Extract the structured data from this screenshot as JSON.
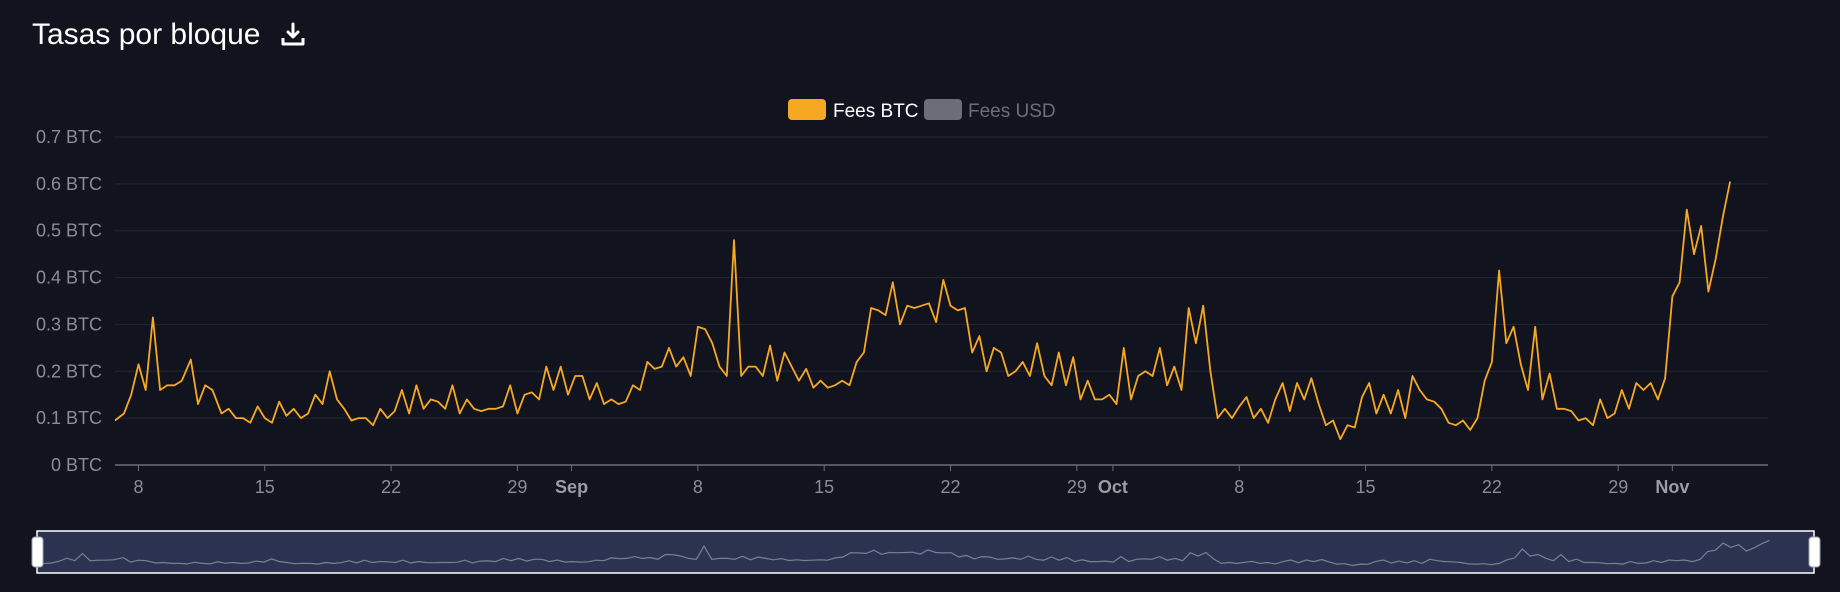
{
  "header": {
    "title": "Tasas por bloque",
    "download_icon": "download-icon"
  },
  "colors": {
    "background": "#11131e",
    "series_btc": "#f7a823",
    "series_usd_inactive": "#6b6e78",
    "grid": "#242633",
    "navigator_fill": "#2b3350",
    "navigator_border": "#ffffff"
  },
  "chart_data": {
    "type": "line",
    "legend_position": "top-center",
    "grid": true,
    "y_ticks": [
      "0 BTC",
      "0.1 BTC",
      "0.2 BTC",
      "0.3 BTC",
      "0.4 BTC",
      "0.5 BTC",
      "0.6 BTC",
      "0.7 BTC"
    ],
    "ylim": [
      0,
      0.7
    ],
    "x_ticks": [
      {
        "label": "8",
        "day": 8,
        "bold": false
      },
      {
        "label": "15",
        "day": 15,
        "bold": false
      },
      {
        "label": "22",
        "day": 22,
        "bold": false
      },
      {
        "label": "29",
        "day": 29,
        "bold": false
      },
      {
        "label": "Sep",
        "day": 32,
        "bold": true
      },
      {
        "label": "8",
        "day": 39,
        "bold": false
      },
      {
        "label": "15",
        "day": 46,
        "bold": false
      },
      {
        "label": "22",
        "day": 53,
        "bold": false
      },
      {
        "label": "29",
        "day": 60,
        "bold": false
      },
      {
        "label": "Oct",
        "day": 62,
        "bold": true
      },
      {
        "label": "8",
        "day": 69,
        "bold": false
      },
      {
        "label": "15",
        "day": 76,
        "bold": false
      },
      {
        "label": "22",
        "day": 83,
        "bold": false
      },
      {
        "label": "29",
        "day": 90,
        "bold": false
      },
      {
        "label": "Nov",
        "day": 93,
        "bold": true
      }
    ],
    "xlim": [
      6.7,
      98.3
    ],
    "series": [
      {
        "name": "Fees BTC",
        "active": true,
        "points": [
          [
            6.7,
            0.095
          ],
          [
            7.2,
            0.11
          ],
          [
            7.6,
            0.15
          ],
          [
            8.0,
            0.215
          ],
          [
            8.4,
            0.16
          ],
          [
            8.8,
            0.315
          ],
          [
            9.2,
            0.16
          ],
          [
            9.6,
            0.17
          ],
          [
            10.0,
            0.17
          ],
          [
            10.4,
            0.18
          ],
          [
            10.9,
            0.225
          ],
          [
            11.3,
            0.13
          ],
          [
            11.7,
            0.17
          ],
          [
            12.1,
            0.16
          ],
          [
            12.6,
            0.11
          ],
          [
            13.0,
            0.12
          ],
          [
            13.4,
            0.1
          ],
          [
            13.8,
            0.1
          ],
          [
            14.2,
            0.09
          ],
          [
            14.6,
            0.125
          ],
          [
            15.0,
            0.1
          ],
          [
            15.4,
            0.09
          ],
          [
            15.8,
            0.135
          ],
          [
            16.2,
            0.105
          ],
          [
            16.6,
            0.12
          ],
          [
            17.0,
            0.1
          ],
          [
            17.4,
            0.11
          ],
          [
            17.8,
            0.15
          ],
          [
            18.2,
            0.13
          ],
          [
            18.6,
            0.2
          ],
          [
            19.0,
            0.14
          ],
          [
            19.4,
            0.12
          ],
          [
            19.8,
            0.095
          ],
          [
            20.2,
            0.1
          ],
          [
            20.6,
            0.1
          ],
          [
            21.0,
            0.085
          ],
          [
            21.4,
            0.12
          ],
          [
            21.8,
            0.1
          ],
          [
            22.2,
            0.115
          ],
          [
            22.6,
            0.16
          ],
          [
            23.0,
            0.11
          ],
          [
            23.4,
            0.17
          ],
          [
            23.8,
            0.12
          ],
          [
            24.2,
            0.14
          ],
          [
            24.6,
            0.135
          ],
          [
            25.0,
            0.12
          ],
          [
            25.4,
            0.17
          ],
          [
            25.8,
            0.11
          ],
          [
            26.2,
            0.14
          ],
          [
            26.6,
            0.12
          ],
          [
            27.0,
            0.115
          ],
          [
            27.4,
            0.12
          ],
          [
            27.8,
            0.12
          ],
          [
            28.2,
            0.125
          ],
          [
            28.6,
            0.17
          ],
          [
            29.0,
            0.11
          ],
          [
            29.4,
            0.15
          ],
          [
            29.8,
            0.155
          ],
          [
            30.2,
            0.14
          ],
          [
            30.6,
            0.21
          ],
          [
            31.0,
            0.16
          ],
          [
            31.4,
            0.21
          ],
          [
            31.8,
            0.15
          ],
          [
            32.2,
            0.19
          ],
          [
            32.6,
            0.19
          ],
          [
            33.0,
            0.14
          ],
          [
            33.4,
            0.175
          ],
          [
            33.8,
            0.13
          ],
          [
            34.2,
            0.14
          ],
          [
            34.6,
            0.13
          ],
          [
            35.0,
            0.135
          ],
          [
            35.4,
            0.17
          ],
          [
            35.8,
            0.16
          ],
          [
            36.2,
            0.22
          ],
          [
            36.6,
            0.205
          ],
          [
            37.0,
            0.21
          ],
          [
            37.4,
            0.25
          ],
          [
            37.8,
            0.21
          ],
          [
            38.2,
            0.23
          ],
          [
            38.6,
            0.19
          ],
          [
            39.0,
            0.295
          ],
          [
            39.4,
            0.29
          ],
          [
            39.8,
            0.26
          ],
          [
            40.2,
            0.21
          ],
          [
            40.6,
            0.19
          ],
          [
            41.0,
            0.48
          ],
          [
            41.4,
            0.19
          ],
          [
            41.8,
            0.21
          ],
          [
            42.2,
            0.21
          ],
          [
            42.6,
            0.19
          ],
          [
            43.0,
            0.255
          ],
          [
            43.4,
            0.18
          ],
          [
            43.8,
            0.24
          ],
          [
            44.2,
            0.21
          ],
          [
            44.6,
            0.18
          ],
          [
            45.0,
            0.205
          ],
          [
            45.4,
            0.165
          ],
          [
            45.8,
            0.18
          ],
          [
            46.2,
            0.165
          ],
          [
            46.6,
            0.17
          ],
          [
            47.0,
            0.18
          ],
          [
            47.4,
            0.17
          ],
          [
            47.8,
            0.22
          ],
          [
            48.2,
            0.24
          ],
          [
            48.6,
            0.335
          ],
          [
            49.0,
            0.33
          ],
          [
            49.4,
            0.32
          ],
          [
            49.8,
            0.39
          ],
          [
            50.2,
            0.3
          ],
          [
            50.6,
            0.34
          ],
          [
            51.0,
            0.335
          ],
          [
            51.4,
            0.34
          ],
          [
            51.8,
            0.345
          ],
          [
            52.2,
            0.305
          ],
          [
            52.6,
            0.395
          ],
          [
            53.0,
            0.34
          ],
          [
            53.4,
            0.33
          ],
          [
            53.8,
            0.335
          ],
          [
            54.2,
            0.24
          ],
          [
            54.6,
            0.275
          ],
          [
            55.0,
            0.2
          ],
          [
            55.4,
            0.25
          ],
          [
            55.8,
            0.24
          ],
          [
            56.2,
            0.19
          ],
          [
            56.6,
            0.2
          ],
          [
            57.0,
            0.22
          ],
          [
            57.4,
            0.19
          ],
          [
            57.8,
            0.26
          ],
          [
            58.2,
            0.19
          ],
          [
            58.6,
            0.17
          ],
          [
            59.0,
            0.24
          ],
          [
            59.4,
            0.17
          ],
          [
            59.8,
            0.23
          ],
          [
            60.2,
            0.14
          ],
          [
            60.6,
            0.18
          ],
          [
            61.0,
            0.14
          ],
          [
            61.4,
            0.14
          ],
          [
            61.8,
            0.15
          ],
          [
            62.2,
            0.13
          ],
          [
            62.6,
            0.25
          ],
          [
            63.0,
            0.14
          ],
          [
            63.4,
            0.19
          ],
          [
            63.8,
            0.2
          ],
          [
            64.2,
            0.19
          ],
          [
            64.6,
            0.25
          ],
          [
            65.0,
            0.17
          ],
          [
            65.4,
            0.21
          ],
          [
            65.8,
            0.16
          ],
          [
            66.2,
            0.335
          ],
          [
            66.6,
            0.26
          ],
          [
            67.0,
            0.34
          ],
          [
            67.4,
            0.2
          ],
          [
            67.8,
            0.1
          ],
          [
            68.2,
            0.12
          ],
          [
            68.6,
            0.1
          ],
          [
            69.0,
            0.125
          ],
          [
            69.4,
            0.145
          ],
          [
            69.8,
            0.1
          ],
          [
            70.2,
            0.12
          ],
          [
            70.6,
            0.09
          ],
          [
            71.0,
            0.14
          ],
          [
            71.4,
            0.175
          ],
          [
            71.8,
            0.115
          ],
          [
            72.2,
            0.175
          ],
          [
            72.6,
            0.14
          ],
          [
            73.0,
            0.185
          ],
          [
            73.4,
            0.13
          ],
          [
            73.8,
            0.085
          ],
          [
            74.2,
            0.095
          ],
          [
            74.6,
            0.055
          ],
          [
            75.0,
            0.085
          ],
          [
            75.4,
            0.08
          ],
          [
            75.8,
            0.145
          ],
          [
            76.2,
            0.175
          ],
          [
            76.6,
            0.11
          ],
          [
            77.0,
            0.15
          ],
          [
            77.4,
            0.11
          ],
          [
            77.8,
            0.16
          ],
          [
            78.2,
            0.1
          ],
          [
            78.6,
            0.19
          ],
          [
            79.0,
            0.16
          ],
          [
            79.4,
            0.14
          ],
          [
            79.8,
            0.135
          ],
          [
            80.2,
            0.12
          ],
          [
            80.6,
            0.09
          ],
          [
            81.0,
            0.085
          ],
          [
            81.4,
            0.095
          ],
          [
            81.8,
            0.075
          ],
          [
            82.2,
            0.1
          ],
          [
            82.6,
            0.18
          ],
          [
            83.0,
            0.22
          ],
          [
            83.4,
            0.415
          ],
          [
            83.8,
            0.26
          ],
          [
            84.2,
            0.295
          ],
          [
            84.6,
            0.215
          ],
          [
            85.0,
            0.16
          ],
          [
            85.4,
            0.295
          ],
          [
            85.8,
            0.14
          ],
          [
            86.2,
            0.195
          ],
          [
            86.6,
            0.12
          ],
          [
            87.0,
            0.12
          ],
          [
            87.4,
            0.115
          ],
          [
            87.8,
            0.095
          ],
          [
            88.2,
            0.1
          ],
          [
            88.6,
            0.085
          ],
          [
            89.0,
            0.14
          ],
          [
            89.4,
            0.1
          ],
          [
            89.8,
            0.11
          ],
          [
            90.2,
            0.16
          ],
          [
            90.6,
            0.12
          ],
          [
            91.0,
            0.175
          ],
          [
            91.4,
            0.16
          ],
          [
            91.8,
            0.175
          ],
          [
            92.2,
            0.14
          ],
          [
            92.6,
            0.185
          ],
          [
            93.0,
            0.36
          ],
          [
            93.4,
            0.39
          ],
          [
            93.8,
            0.545
          ],
          [
            94.2,
            0.45
          ],
          [
            94.6,
            0.51
          ],
          [
            95.0,
            0.37
          ],
          [
            95.4,
            0.44
          ],
          [
            95.8,
            0.53
          ],
          [
            96.2,
            0.605
          ]
        ]
      },
      {
        "name": "Fees USD",
        "active": false,
        "points": []
      }
    ]
  },
  "navigator": {
    "handle_left_icon": "drag-handle-icon",
    "handle_right_icon": "drag-handle-icon"
  }
}
